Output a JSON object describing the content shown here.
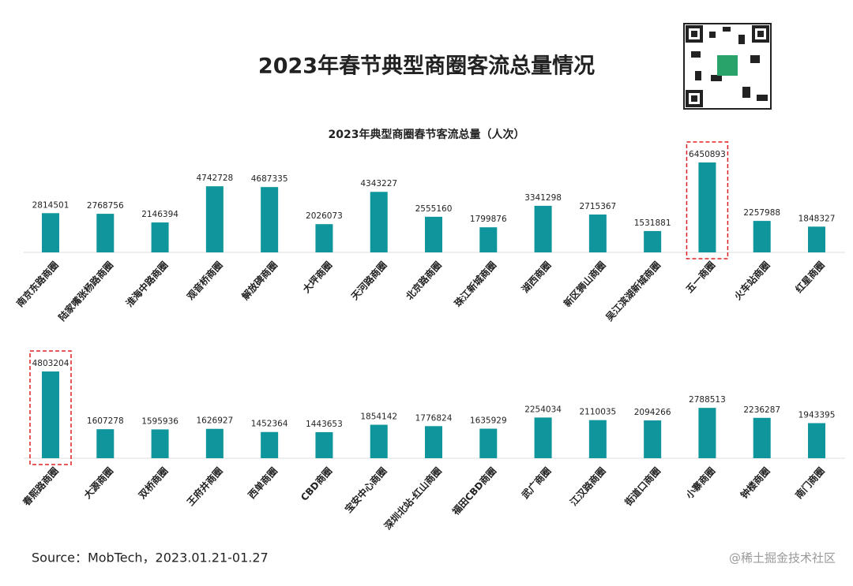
{
  "title": "2023年春节典型商圈客流总量情况",
  "source": "Source：MobTech，2023.01.21-01.27",
  "watermark": "@稀土掘金技术社区",
  "chart_data": [
    {
      "type": "bar",
      "title": "2023年典型商圈春节客流总量（人次）",
      "color": "#0f969c",
      "highlight_index": 12,
      "categories": [
        "南京东路商圈",
        "陆家嘴张杨路商圈",
        "淮海中路商圈",
        "观音桥商圈",
        "解放碑商圈",
        "大坪商圈",
        "天河路商圈",
        "北京路商圈",
        "珠江新城商圈",
        "湖西商圈",
        "新区狮山商圈",
        "吴江滨湖新城商圈",
        "五一商圈",
        "火车站商圈",
        "红星商圈"
      ],
      "values": [
        2814501,
        2768756,
        2146394,
        4742728,
        4687335,
        2026073,
        4343227,
        2555160,
        1799876,
        3341298,
        2715367,
        1531881,
        6450893,
        2257988,
        1848327
      ]
    },
    {
      "type": "bar",
      "color": "#0f969c",
      "highlight_index": 0,
      "categories": [
        "春熙路商圈",
        "大源商圈",
        "双桥商圈",
        "王府井商圈",
        "西单商圈",
        "CBD商圈",
        "宝安中心商圈",
        "深圳北站-红山商圈",
        "福田CBD商圈",
        "武广商圈",
        "江汉路商圈",
        "街道口商圈",
        "小寨商圈",
        "钟楼商圈",
        "南门商圈"
      ],
      "values": [
        4803204,
        1607278,
        1595936,
        1626927,
        1452364,
        1443653,
        1854142,
        1776824,
        1635929,
        2254034,
        2110035,
        2094266,
        2788513,
        2236287,
        1943395
      ]
    }
  ]
}
